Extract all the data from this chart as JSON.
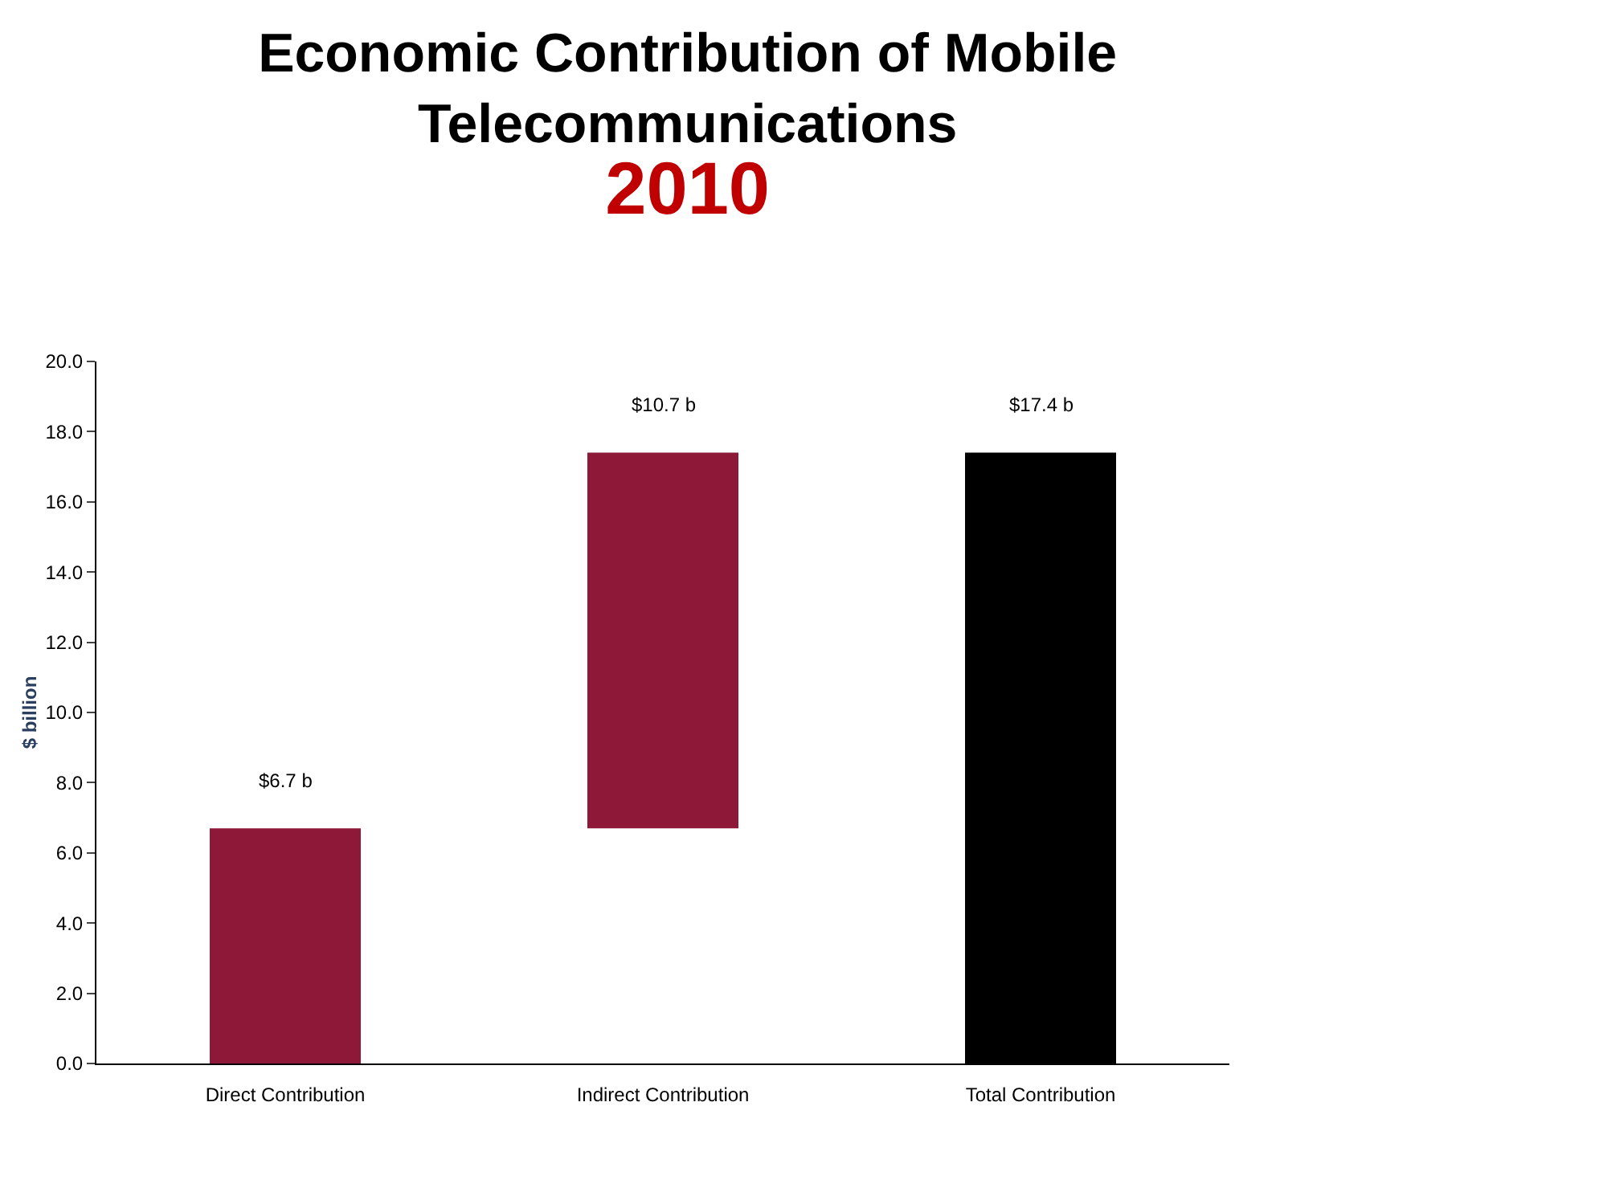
{
  "chart_data": {
    "type": "bar",
    "title": "Economic Contribution of Mobile Telecommunications",
    "subtitle": "2010",
    "ylabel": "$ billion",
    "categories": [
      "Direct Contribution",
      "Indirect Contribution",
      "Total Contribution"
    ],
    "values": [
      6.7,
      10.7,
      17.4
    ],
    "base": [
      0,
      6.7,
      0
    ],
    "colors": [
      "#8e1838",
      "#8e1838",
      "#000000"
    ],
    "value_labels": [
      "$6.7 b",
      "$10.7 b",
      "$17.4 b"
    ],
    "ylim": [
      0,
      20
    ],
    "yticks": [
      {
        "value": 0,
        "label": "0.0"
      },
      {
        "value": 2,
        "label": "2.0"
      },
      {
        "value": 4,
        "label": "4.0"
      },
      {
        "value": 6,
        "label": "6.0"
      },
      {
        "value": 8,
        "label": "8.0"
      },
      {
        "value": 10,
        "label": "10.0"
      },
      {
        "value": 12,
        "label": "12.0"
      },
      {
        "value": 14,
        "label": "14.0"
      },
      {
        "value": 16,
        "label": "16.0"
      },
      {
        "value": 18,
        "label": "18.0"
      },
      {
        "value": 20,
        "label": "20.0"
      }
    ],
    "legend": false
  }
}
